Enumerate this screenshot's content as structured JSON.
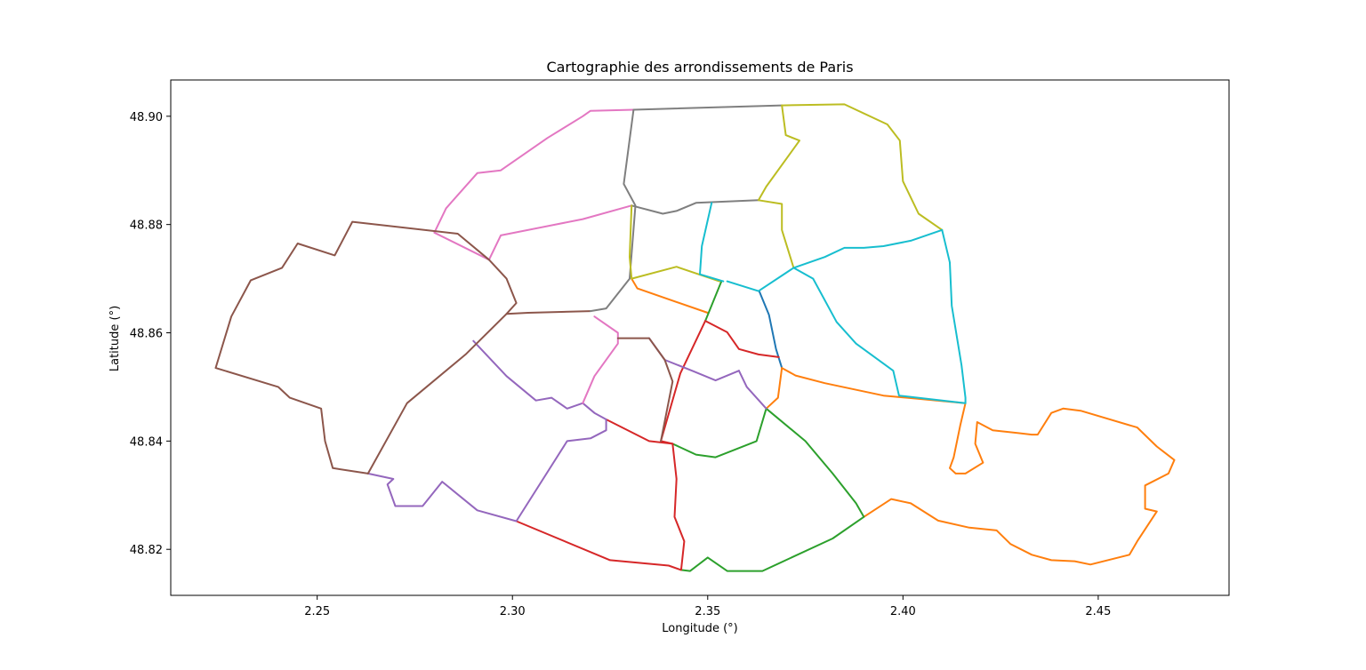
{
  "chart_data": {
    "type": "map",
    "title": "Cartographie des arrondissements de Paris",
    "xlabel": "Longitude (°)",
    "ylabel": "Latitude (°)",
    "xlim": [
      2.2125,
      2.4835
    ],
    "ylim": [
      48.8115,
      48.9067
    ],
    "xticks": [
      2.25,
      2.3,
      2.35,
      2.4,
      2.45
    ],
    "xtick_labels": [
      "2.25",
      "2.30",
      "2.35",
      "2.40",
      "2.45"
    ],
    "yticks": [
      48.82,
      48.84,
      48.86,
      48.88,
      48.9
    ],
    "ytick_labels": [
      "48.82",
      "48.84",
      "48.86",
      "48.88",
      "48.90"
    ],
    "grid": false,
    "series": [
      {
        "color": "#1f77b4",
        "points": [
          [
            2.3632,
            48.8677
          ],
          [
            2.3657,
            48.8633
          ],
          [
            2.3675,
            48.857
          ],
          [
            2.369,
            48.8535
          ]
        ]
      },
      {
        "color": "#d62728",
        "points": [
          [
            2.3494,
            48.8622
          ],
          [
            2.355,
            48.8601
          ],
          [
            2.358,
            48.857
          ],
          [
            2.363,
            48.856
          ],
          [
            2.3682,
            48.8555
          ]
        ]
      },
      {
        "color": "#ff7f0e",
        "points": [
          [
            2.3305,
            48.87
          ],
          [
            2.332,
            48.8682
          ],
          [
            2.35,
            48.8637
          ]
        ]
      },
      {
        "color": "#ff7f0e",
        "points": [
          [
            2.369,
            48.8535
          ],
          [
            2.3725,
            48.8521
          ],
          [
            2.38,
            48.8507
          ],
          [
            2.395,
            48.8484
          ],
          [
            2.416,
            48.847
          ],
          [
            2.4147,
            48.843
          ],
          [
            2.413,
            48.837
          ],
          [
            2.412,
            48.835
          ],
          [
            2.4135,
            48.834
          ],
          [
            2.416,
            48.834
          ],
          [
            2.4205,
            48.836
          ],
          [
            2.4185,
            48.8395
          ],
          [
            2.419,
            48.8435
          ],
          [
            2.423,
            48.842
          ],
          [
            2.433,
            48.8412
          ],
          [
            2.4345,
            48.8412
          ],
          [
            2.438,
            48.8452
          ],
          [
            2.441,
            48.846
          ],
          [
            2.4455,
            48.8456
          ],
          [
            2.46,
            48.8425
          ],
          [
            2.465,
            48.839
          ],
          [
            2.4695,
            48.8365
          ],
          [
            2.468,
            48.834
          ],
          [
            2.462,
            48.8318
          ],
          [
            2.462,
            48.8275
          ],
          [
            2.465,
            48.827
          ],
          [
            2.46,
            48.8215
          ],
          [
            2.458,
            48.819
          ],
          [
            2.448,
            48.8172
          ],
          [
            2.444,
            48.8178
          ],
          [
            2.438,
            48.818
          ],
          [
            2.433,
            48.819
          ],
          [
            2.4275,
            48.821
          ],
          [
            2.424,
            48.8235
          ],
          [
            2.417,
            48.824
          ],
          [
            2.409,
            48.8253
          ],
          [
            2.402,
            48.8285
          ],
          [
            2.397,
            48.8293
          ],
          [
            2.39,
            48.826
          ]
        ]
      },
      {
        "color": "#ff7f0e",
        "points": [
          [
            2.365,
            48.846
          ],
          [
            2.368,
            48.848
          ],
          [
            2.369,
            48.8535
          ]
        ]
      },
      {
        "color": "#2ca02c",
        "points": [
          [
            2.3535,
            48.8695
          ],
          [
            2.3494,
            48.8622
          ]
        ]
      },
      {
        "color": "#2ca02c",
        "points": [
          [
            2.365,
            48.846
          ],
          [
            2.3625,
            48.84
          ],
          [
            2.352,
            48.837
          ],
          [
            2.347,
            48.8375
          ],
          [
            2.341,
            48.8395
          ]
        ]
      },
      {
        "color": "#2ca02c",
        "points": [
          [
            2.365,
            48.846
          ],
          [
            2.375,
            48.84
          ],
          [
            2.382,
            48.834
          ],
          [
            2.388,
            48.8285
          ],
          [
            2.39,
            48.826
          ],
          [
            2.382,
            48.822
          ],
          [
            2.364,
            48.816
          ],
          [
            2.355,
            48.816
          ],
          [
            2.35,
            48.8185
          ],
          [
            2.3455,
            48.816
          ],
          [
            2.3432,
            48.8162
          ]
        ]
      },
      {
        "color": "#d62728",
        "points": [
          [
            2.3494,
            48.8622
          ],
          [
            2.343,
            48.8525
          ],
          [
            2.338,
            48.84
          ],
          [
            2.341,
            48.8395
          ]
        ]
      },
      {
        "color": "#d62728",
        "points": [
          [
            2.324,
            48.844
          ],
          [
            2.335,
            48.84
          ],
          [
            2.341,
            48.8395
          ],
          [
            2.342,
            48.833
          ],
          [
            2.3415,
            48.826
          ],
          [
            2.344,
            48.8215
          ],
          [
            2.3432,
            48.8162
          ],
          [
            2.34,
            48.817
          ],
          [
            2.325,
            48.818
          ],
          [
            2.301,
            48.8252
          ]
        ]
      },
      {
        "color": "#9467bd",
        "points": [
          [
            2.358,
            48.853
          ],
          [
            2.352,
            48.8512
          ],
          [
            2.346,
            48.853
          ],
          [
            2.339,
            48.855
          ],
          [
            2.335,
            48.859
          ]
        ]
      },
      {
        "color": "#9467bd",
        "points": [
          [
            2.365,
            48.846
          ],
          [
            2.36,
            48.85
          ],
          [
            2.358,
            48.853
          ]
        ]
      },
      {
        "color": "#9467bd",
        "points": [
          [
            2.318,
            48.847
          ],
          [
            2.321,
            48.8452
          ],
          [
            2.324,
            48.844
          ],
          [
            2.324,
            48.842
          ],
          [
            2.32,
            48.8405
          ],
          [
            2.314,
            48.84
          ],
          [
            2.301,
            48.8252
          ],
          [
            2.291,
            48.8272
          ],
          [
            2.282,
            48.8325
          ],
          [
            2.277,
            48.828
          ],
          [
            2.27,
            48.828
          ],
          [
            2.268,
            48.832
          ],
          [
            2.2695,
            48.833
          ],
          [
            2.263,
            48.834
          ]
        ]
      },
      {
        "color": "#9467bd",
        "points": [
          [
            2.29,
            48.8585
          ],
          [
            2.2985,
            48.852
          ],
          [
            2.306,
            48.8475
          ],
          [
            2.31,
            48.848
          ],
          [
            2.314,
            48.846
          ],
          [
            2.318,
            48.847
          ]
        ]
      },
      {
        "color": "#e377c2",
        "points": [
          [
            2.321,
            48.863
          ],
          [
            2.327,
            48.86
          ],
          [
            2.327,
            48.858
          ],
          [
            2.321,
            48.852
          ],
          [
            2.318,
            48.847
          ]
        ]
      },
      {
        "color": "#e377c2",
        "points": [
          [
            2.3305,
            48.8835
          ],
          [
            2.318,
            48.881
          ],
          [
            2.297,
            48.878
          ],
          [
            2.294,
            48.8735
          ],
          [
            2.28,
            48.8785
          ],
          [
            2.283,
            48.883
          ],
          [
            2.291,
            48.8895
          ],
          [
            2.297,
            48.89
          ],
          [
            2.309,
            48.896
          ],
          [
            2.318,
            48.9
          ],
          [
            2.32,
            48.901
          ],
          [
            2.331,
            48.9012
          ]
        ]
      },
      {
        "color": "#8c564b",
        "points": [
          [
            2.263,
            48.834
          ],
          [
            2.273,
            48.847
          ],
          [
            2.288,
            48.856
          ],
          [
            2.2985,
            48.8635
          ],
          [
            2.304,
            48.8637
          ],
          [
            2.32,
            48.864
          ]
        ]
      },
      {
        "color": "#8c564b",
        "points": [
          [
            2.294,
            48.8735
          ],
          [
            2.286,
            48.8783
          ],
          [
            2.259,
            48.8805
          ],
          [
            2.2545,
            48.8743
          ],
          [
            2.245,
            48.8765
          ],
          [
            2.241,
            48.872
          ],
          [
            2.233,
            48.8697
          ],
          [
            2.228,
            48.863
          ],
          [
            2.224,
            48.8535
          ],
          [
            2.24,
            48.85
          ],
          [
            2.243,
            48.848
          ],
          [
            2.251,
            48.846
          ],
          [
            2.252,
            48.84
          ],
          [
            2.254,
            48.835
          ],
          [
            2.263,
            48.834
          ]
        ]
      },
      {
        "color": "#8c564b",
        "points": [
          [
            2.294,
            48.8735
          ],
          [
            2.2985,
            48.87
          ],
          [
            2.301,
            48.8655
          ],
          [
            2.2985,
            48.8635
          ]
        ]
      },
      {
        "color": "#8c564b",
        "points": [
          [
            2.327,
            48.859
          ],
          [
            2.335,
            48.859
          ],
          [
            2.339,
            48.855
          ],
          [
            2.341,
            48.851
          ],
          [
            2.338,
            48.84
          ]
        ]
      },
      {
        "color": "#7f7f7f",
        "points": [
          [
            2.32,
            48.864
          ],
          [
            2.324,
            48.8645
          ],
          [
            2.33,
            48.87
          ],
          [
            2.3315,
            48.8835
          ],
          [
            2.3285,
            48.8875
          ],
          [
            2.331,
            48.9012
          ],
          [
            2.369,
            48.902
          ]
        ]
      },
      {
        "color": "#7f7f7f",
        "points": [
          [
            2.3305,
            48.8835
          ],
          [
            2.3385,
            48.882
          ],
          [
            2.342,
            48.8825
          ],
          [
            2.347,
            48.884
          ],
          [
            2.363,
            48.8845
          ]
        ]
      },
      {
        "color": "#bcbd22",
        "points": [
          [
            2.369,
            48.902
          ],
          [
            2.385,
            48.9022
          ],
          [
            2.396,
            48.8985
          ],
          [
            2.3992,
            48.8955
          ],
          [
            2.4,
            48.888
          ],
          [
            2.402,
            48.885
          ],
          [
            2.404,
            48.882
          ],
          [
            2.41,
            48.879
          ]
        ]
      },
      {
        "color": "#bcbd22",
        "points": [
          [
            2.369,
            48.902
          ],
          [
            2.37,
            48.8965
          ],
          [
            2.3735,
            48.8955
          ],
          [
            2.365,
            48.887
          ],
          [
            2.363,
            48.8845
          ],
          [
            2.369,
            48.8838
          ],
          [
            2.369,
            48.879
          ],
          [
            2.372,
            48.872
          ]
        ]
      },
      {
        "color": "#bcbd22",
        "points": [
          [
            2.3305,
            48.8835
          ],
          [
            2.33,
            48.874
          ],
          [
            2.3305,
            48.87
          ],
          [
            2.342,
            48.8722
          ],
          [
            2.353,
            48.8695
          ]
        ]
      },
      {
        "color": "#17becf",
        "points": [
          [
            2.355,
            48.8695
          ],
          [
            2.363,
            48.8677
          ],
          [
            2.372,
            48.872
          ],
          [
            2.38,
            48.874
          ],
          [
            2.385,
            48.8757
          ],
          [
            2.39,
            48.8757
          ],
          [
            2.395,
            48.876
          ],
          [
            2.402,
            48.877
          ],
          [
            2.41,
            48.879
          ],
          [
            2.412,
            48.873
          ],
          [
            2.4125,
            48.865
          ],
          [
            2.415,
            48.854
          ],
          [
            2.416,
            48.848
          ],
          [
            2.416,
            48.847
          ],
          [
            2.399,
            48.8484
          ],
          [
            2.3975,
            48.853
          ],
          [
            2.388,
            48.858
          ],
          [
            2.383,
            48.862
          ],
          [
            2.377,
            48.87
          ],
          [
            2.372,
            48.872
          ]
        ]
      },
      {
        "color": "#17becf",
        "points": [
          [
            2.354,
            48.8695
          ],
          [
            2.348,
            48.8708
          ],
          [
            2.3485,
            48.876
          ],
          [
            2.351,
            48.884
          ]
        ]
      }
    ]
  }
}
